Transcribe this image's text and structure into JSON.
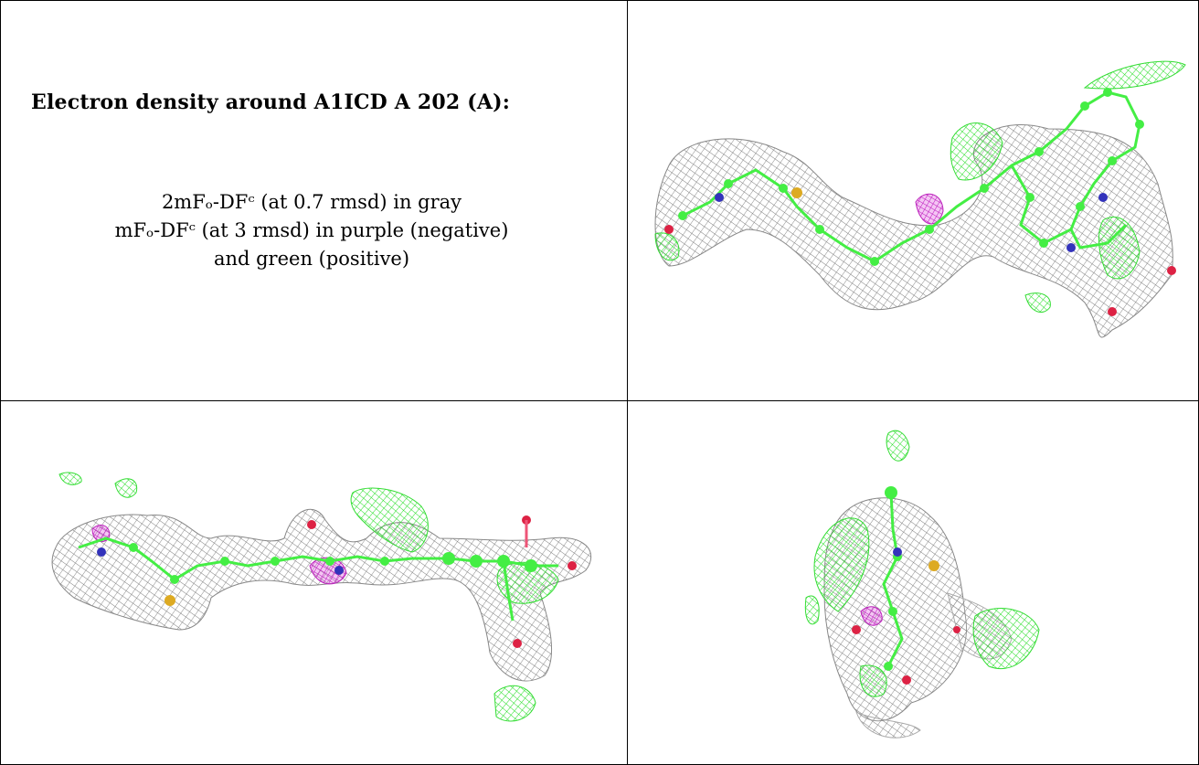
{
  "legend": {
    "title": "Electron density around A1ICD A 202 (A):",
    "line1": "2mFₒ-DFᶜ (at 0.7 rmsd) in gray",
    "line2": "mFₒ-DFᶜ (at 3 rmsd) in purple (negative)",
    "line3": "and green (positive)"
  },
  "views": [
    {
      "label": "view-top-right"
    },
    {
      "label": "view-bottom-left"
    },
    {
      "label": "view-bottom-right"
    }
  ],
  "colors": {
    "mesh_2fofc": "#8c8c8c",
    "mesh_fofc_positive": "#33ee33",
    "mesh_fofc_negative": "#cc22cc",
    "carbon": "#44ee44",
    "nitrogen": "#3333bb",
    "oxygen": "#dd2244",
    "sulfur": "#ddaa22"
  }
}
